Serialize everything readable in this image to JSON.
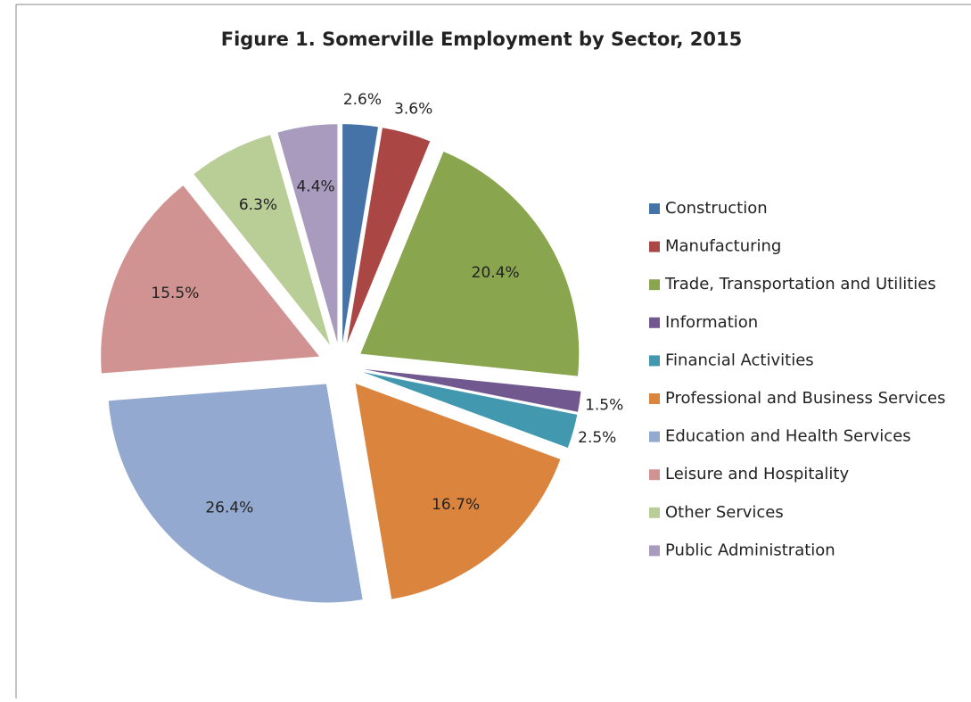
{
  "chart_data": {
    "type": "pie",
    "title": "Figure 1. Somerville Employment by Sector, 2015",
    "categories": [
      "Construction",
      "Manufacturing",
      "Trade, Transportation and Utilities",
      "Information",
      "Financial Activities",
      "Professional and Business Services",
      "Education and Health Services",
      "Leisure and Hospitality",
      "Other Services",
      "Public Administration"
    ],
    "values": [
      2.6,
      3.6,
      20.4,
      1.5,
      2.5,
      16.7,
      26.4,
      15.5,
      6.3,
      4.4
    ],
    "value_labels": [
      "2.6%",
      "3.6%",
      "20.4%",
      "1.5%",
      "2.5%",
      "16.7%",
      "26.4%",
      "15.5%",
      "6.3%",
      "4.4%"
    ],
    "colors": [
      "#4572a7",
      "#aa4643",
      "#89a54e",
      "#71588f",
      "#4198af",
      "#db843d",
      "#93a9cf",
      "#d19392",
      "#b9cd96",
      "#a99bbd"
    ],
    "legend": "right"
  }
}
